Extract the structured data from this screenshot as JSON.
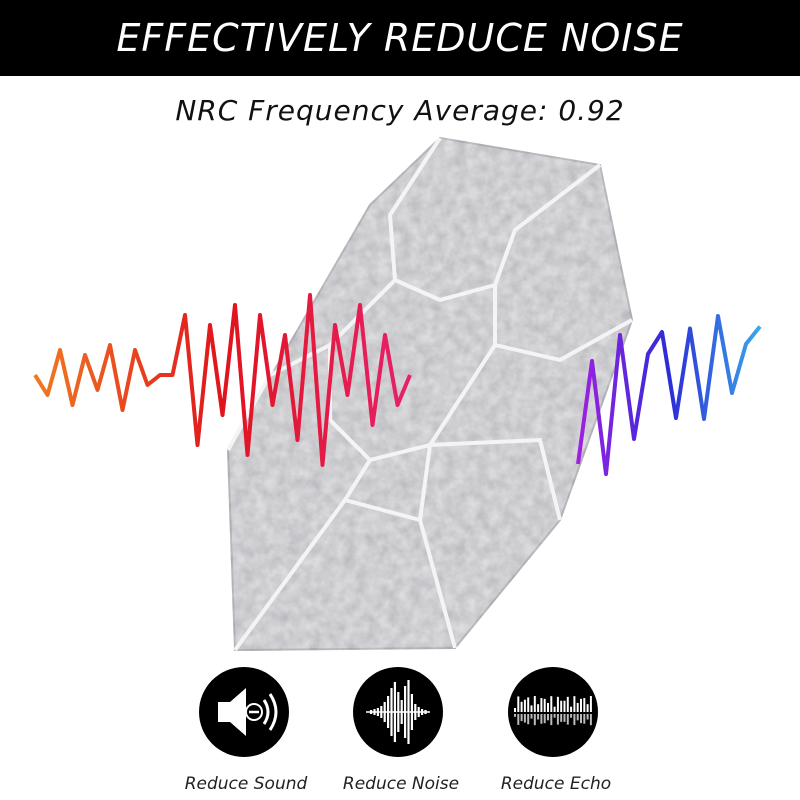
{
  "header": {
    "title": "EFFECTIVELY REDUCE NOISE"
  },
  "subtitle": "NRC Frequency Average: 0.92",
  "features": [
    {
      "label": "Reduce Sound"
    },
    {
      "label": "Reduce Noise"
    },
    {
      "label": "Reduce Echo"
    }
  ]
}
